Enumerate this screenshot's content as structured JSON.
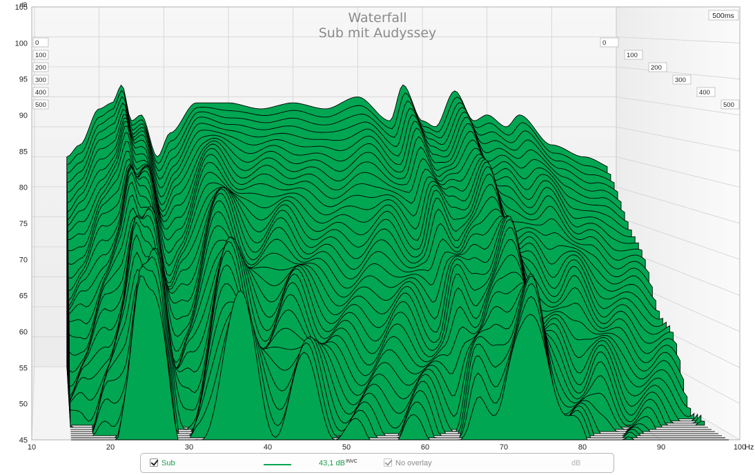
{
  "chart_data": {
    "type": "area",
    "subtype": "waterfall",
    "title": "Waterfall",
    "subtitle": "Sub mit Audyssey",
    "ylabel": "dB",
    "xunit": "Hz",
    "xlim": [
      10,
      100
    ],
    "ylim": [
      45,
      105
    ],
    "xticks": [
      10,
      20,
      30,
      40,
      50,
      60,
      70,
      80,
      90,
      100
    ],
    "yticks": [
      45,
      50,
      55,
      60,
      65,
      70,
      75,
      80,
      85,
      90,
      95,
      100,
      105
    ],
    "time_axis_label": "500ms",
    "time_ticks_ms": [
      0,
      100,
      200,
      300,
      400,
      500
    ],
    "fill_color": "#00a651",
    "outline_color": "#000000",
    "slice_count": 36,
    "front_slice": {
      "time_ms": 0,
      "x": [
        15,
        17,
        20,
        22,
        23.5,
        25,
        26.5,
        29,
        31,
        35,
        40,
        45,
        50,
        55,
        60,
        65,
        67,
        70,
        72,
        75,
        78,
        80,
        83,
        85,
        90,
        95,
        100
      ],
      "y": [
        80,
        82,
        88,
        89,
        92,
        86,
        87,
        80,
        84,
        89,
        89,
        88,
        89,
        88,
        90,
        86,
        92,
        86,
        85,
        91,
        86,
        87,
        85,
        87,
        82,
        80,
        78
      ]
    }
  },
  "legend": {
    "series_name": "Sub",
    "series_checked": true,
    "value": "43,1 dB",
    "value_suffix": "INVC",
    "overlay_label": "No overlay",
    "overlay_checked": true,
    "unit": "dB",
    "line_color": "#00a651"
  }
}
